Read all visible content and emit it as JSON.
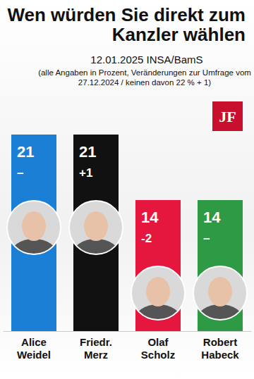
{
  "chart_data": {
    "type": "bar",
    "title": "Wen würden Sie direkt zum Kanzler wählen",
    "subtitle": "12.01.2025 INSA/BamS",
    "note": "(alle Angaben in Prozent, Veränderungen zur Umfrage vom 27.12.2024 / keinen davon 22 % + 1)",
    "logo": "JF",
    "categories": [
      "Alice Weidel",
      "Friedr. Merz",
      "Olaf Scholz",
      "Robert Habeck"
    ],
    "values": [
      21,
      21,
      14,
      14
    ],
    "change_values": [
      0,
      1,
      -2,
      0
    ],
    "change_labels": [
      "–",
      "+1",
      "-2",
      "–"
    ],
    "colors": [
      "#1b7fd6",
      "#111111",
      "#e5173f",
      "#2e9a45"
    ],
    "ylim": [
      0,
      21
    ],
    "data_labels": true,
    "tick_labels": "x",
    "grid": false
  }
}
